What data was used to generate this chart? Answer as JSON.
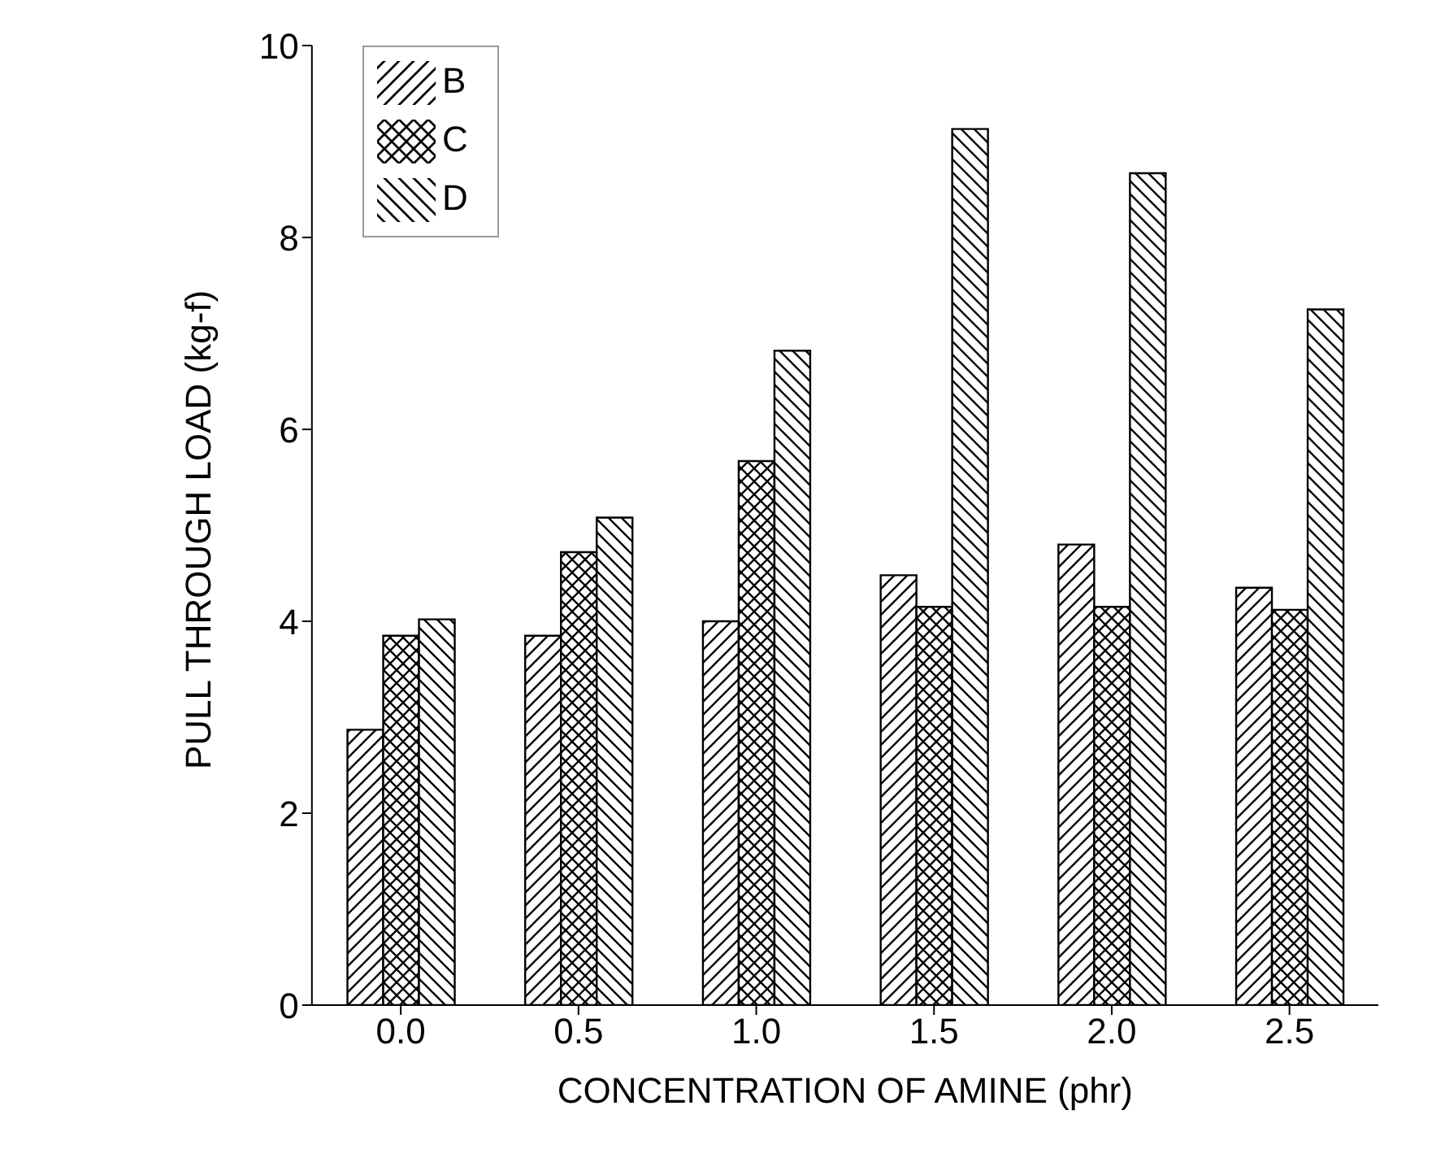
{
  "chart_data": {
    "type": "bar",
    "xlabel": "CONCENTRATION OF AMINE (phr)",
    "ylabel": "PULL THROUGH LOAD (kg-f)",
    "categories": [
      "0.0",
      "0.5",
      "1.0",
      "1.5",
      "2.0",
      "2.5"
    ],
    "series": [
      {
        "name": "B",
        "color": "#000000",
        "values": [
          2.87,
          3.85,
          4.0,
          4.48,
          4.8,
          4.35
        ]
      },
      {
        "name": "C",
        "color": "#000000",
        "values": [
          3.85,
          4.72,
          5.67,
          4.15,
          4.15,
          4.12
        ]
      },
      {
        "name": "D",
        "color": "#000000",
        "values": [
          4.02,
          5.08,
          6.82,
          9.13,
          8.67,
          7.25
        ]
      }
    ],
    "ylim": [
      0,
      10
    ],
    "yticks": [
      0,
      2,
      4,
      6,
      8,
      10
    ],
    "grid": false,
    "legend": "top left"
  }
}
